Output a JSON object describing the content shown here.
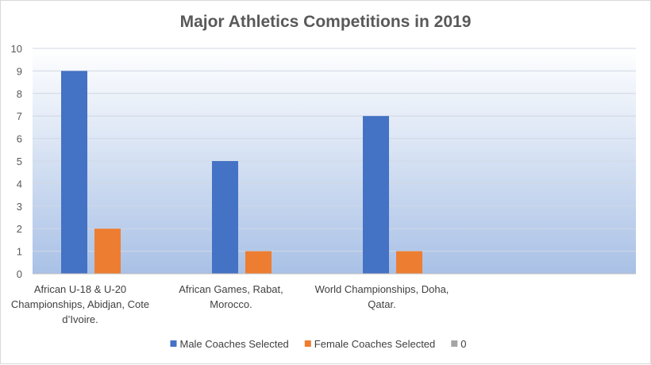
{
  "chart_data": {
    "type": "bar",
    "title": "Major Athletics Competitions in 2019",
    "xlabel": "",
    "ylabel": "",
    "ylim": [
      0,
      10
    ],
    "yticks": [
      0,
      1,
      2,
      3,
      4,
      5,
      6,
      7,
      8,
      9,
      10
    ],
    "categories": [
      [
        "African U-18 & U-20",
        "Championships, Abidjan, Cote",
        "d’Ivoire."
      ],
      [
        "African Games, Rabat,",
        "Morocco."
      ],
      [
        "World Championships, Doha,",
        "Qatar."
      ],
      [
        ""
      ]
    ],
    "series": [
      {
        "name": "Male Coaches Selected",
        "values": [
          9,
          5,
          7,
          null
        ],
        "color": "#4472c4"
      },
      {
        "name": "Female Coaches Selected",
        "values": [
          2,
          1,
          1,
          null
        ],
        "color": "#ed7d31"
      },
      {
        "name": "0",
        "values": [
          null,
          null,
          null,
          null
        ],
        "color": "#a5a5a5"
      }
    ],
    "legend_position": "bottom",
    "grid": true,
    "background_gradient": [
      "#ffffff",
      "#a9c1e6"
    ]
  }
}
